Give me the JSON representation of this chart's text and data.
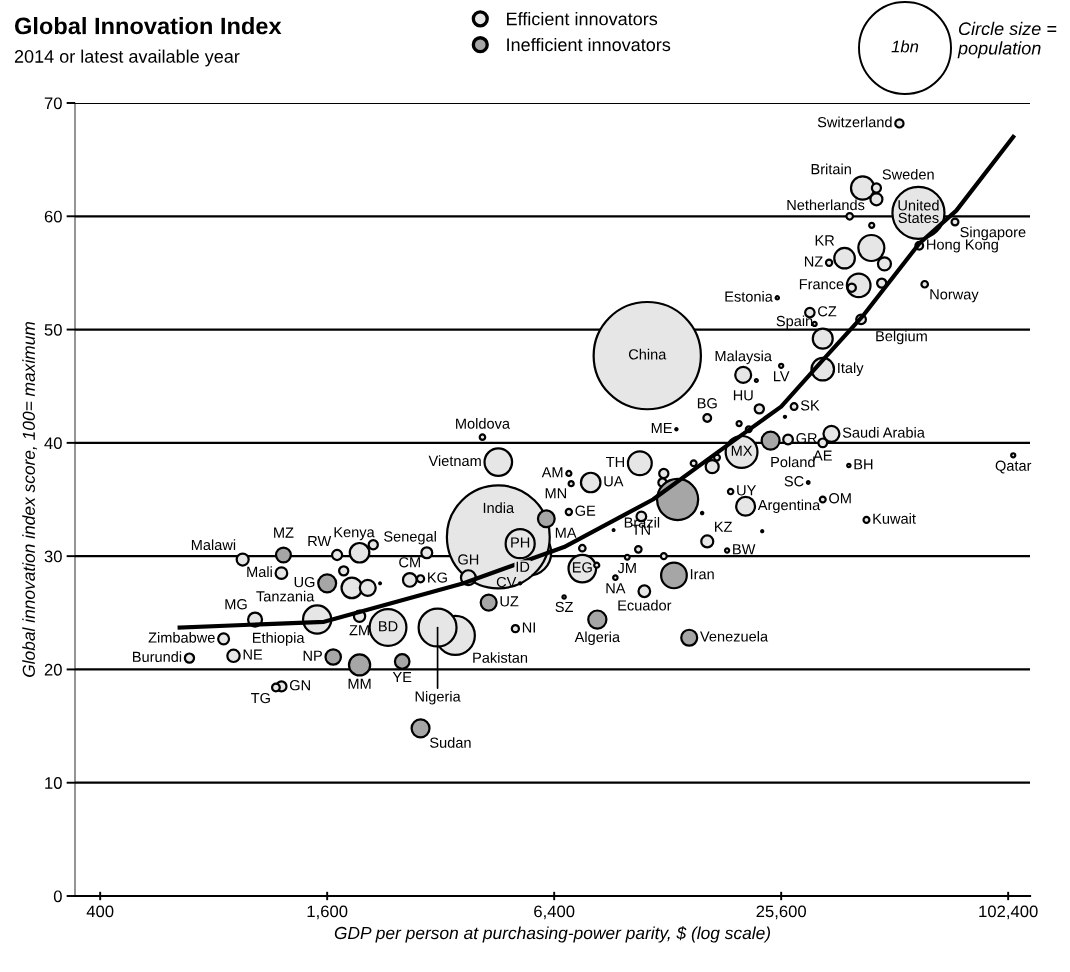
{
  "chart_data": {
    "type": "bubble",
    "title": "Global Innovation Index",
    "subtitle": "2014 or latest available year",
    "xlabel": "GDP per person at purchasing-power parity, $ (log scale)",
    "ylabel": "Global innovation index score, 100= maximum",
    "log": "x",
    "grid": "y",
    "legend": "top",
    "marker": "circle",
    "xlim": [
      343,
      117000
    ],
    "ylim": [
      0,
      70
    ],
    "xticks": [
      400,
      {
        "value": 1600,
        "label": "1,600"
      },
      {
        "value": 6400,
        "label": "6,400"
      },
      {
        "value": 25600,
        "label": "25,600"
      },
      {
        "value": 102400,
        "label": "102,400"
      }
    ],
    "yticks": [
      0,
      10,
      20,
      30,
      40,
      50,
      60,
      70
    ],
    "size_legend": [
      {
        "value": 1,
        "label": "1bn"
      }
    ],
    "series": [
      {
        "name": "Efficient innovators",
        "color": "#e6e6e6",
        "x": [
          52700,
          42100,
          45800,
          45800,
          59200,
          74000,
          59500,
          37700,
          34300,
          41100,
          61500,
          25000,
          30500,
          41700,
          33000,
          33000,
          11300,
          20300,
          25600,
          22400,
          27700,
          13500,
          16300,
          20100,
          26700,
          34800,
          33000,
          38700,
          105600,
          30200,
          33000,
          43100,
          18800,
          20600,
          16300,
          18400,
          10800,
          10900,
          8000,
          7000,
          7100,
          7000,
          5460,
          7600,
          10000,
          9300,
          11100,
          6800,
          4550,
          4130,
          4550,
          5200,
          3790,
          5200,
          5050,
          3500,
          3140,
          2320,
          1950,
          1505,
          1860,
          1210,
          955,
          1700,
          1950,
          2940,
          2650,
          2830,
          1030,
          850,
          690,
          903,
          1210,
          1170,
          38900,
          44500,
          44400,
          48100,
          39400,
          47300,
          31400,
          22000,
          26200,
          19800,
          21000,
          15000,
          17300,
          16800,
          12500,
          12400,
          7600,
          8300,
          10700,
          12500,
          1770,
          2120,
          2050,
          2210,
          15800,
          22800,
          9200
        ],
        "values": [
          68.2,
          62.5,
          62.5,
          61.5,
          60.3,
          59.5,
          57.4,
          56.3,
          55.9,
          53.9,
          54.0,
          52.8,
          51.5,
          50.9,
          49.2,
          46.5,
          47.7,
          46.0,
          46.8,
          43.0,
          43.2,
          41.2,
          42.2,
          39.2,
          40.3,
          40.8,
          40.0,
          38.0,
          38.9,
          36.5,
          35.0,
          33.2,
          35.7,
          34.4,
          31.3,
          30.5,
          38.2,
          33.5,
          36.5,
          37.3,
          36.4,
          33.9,
          30.3,
          28.9,
          29.9,
          28.1,
          26.9,
          26.4,
          31.7,
          40.5,
          38.3,
          31.1,
          28.1,
          27.6,
          23.6,
          23.0,
          23.7,
          23.7,
          24.7,
          24.4,
          27.2,
          28.5,
          29.7,
          30.1,
          30.3,
          30.3,
          27.9,
          28.0,
          24.4,
          22.7,
          21.0,
          21.2,
          18.5,
          18.4,
          60.0,
          59.2,
          57.2,
          55.8,
          53.7,
          54.1,
          50.5,
          45.5,
          42.3,
          41.7,
          41.2,
          38.2,
          38.7,
          37.9,
          37.3,
          36.5,
          30.7,
          29.2,
          30.6,
          30.0,
          28.7,
          31.0,
          27.2,
          27.6,
          33.8,
          32.2,
          32.3
        ],
        "sizes": [
          0.008,
          0.064,
          0.0097,
          0.017,
          0.32,
          0.0055,
          0.007,
          0.05,
          0.0045,
          0.066,
          0.005,
          0.0013,
          0.0105,
          0.011,
          0.047,
          0.06,
          1.36,
          0.03,
          0.002,
          0.01,
          0.0054,
          0.0006,
          0.007,
          0.12,
          0.011,
          0.03,
          0.009,
          0.0013,
          0.002,
          0.0008,
          0.004,
          0.004,
          0.0034,
          0.042,
          0.017,
          0.002,
          0.067,
          0.011,
          0.045,
          0.003,
          0.003,
          0.0045,
          0.25,
          0.09,
          0.0027,
          0.0023,
          0.016,
          0.0013,
          1.25,
          0.0035,
          0.09,
          0.1,
          0.026,
          0.0005,
          0.006,
          0.18,
          0.17,
          0.16,
          0.015,
          0.094,
          0.05,
          0.016,
          0.017,
          0.012,
          0.045,
          0.014,
          0.022,
          0.006,
          0.023,
          0.014,
          0.01,
          0.018,
          0.012,
          0.007,
          0.005,
          0.003,
          0.08,
          0.02,
          0.008,
          0.01,
          0.002,
          0.001,
          0.0005,
          0.003,
          0.004,
          0.004,
          0.004,
          0.02,
          0.01,
          0.008,
          0.005,
          0.003,
          0.005,
          0.004,
          0.01,
          0.01,
          0.03,
          0.0004,
          0.0006,
          0.0005,
          0.0004
        ]
      },
      {
        "name": "Inefficient innovators",
        "color": "#a6a6a6",
        "x": [
          24000,
          13600,
          13300,
          8330,
          14600,
          6100,
          4290,
          1600,
          1225,
          1660,
          1950,
          2530,
          2830
        ],
        "values": [
          40.2,
          35.0,
          28.3,
          24.4,
          22.8,
          33.3,
          25.9,
          27.6,
          30.1,
          21.1,
          20.4,
          20.7,
          14.8
        ],
        "sizes": [
          0.038,
          0.2,
          0.078,
          0.039,
          0.03,
          0.033,
          0.03,
          0.038,
          0.026,
          0.028,
          0.053,
          0.025,
          0.038
        ]
      },
      {
        "type": "line",
        "color": "#000000",
        "marker": "none",
        "x": [
          650,
          1570,
          3680,
          6800,
          11700,
          18100,
          25600,
          33000,
          42400,
          59500,
          74600,
          105600
        ],
        "values": [
          23.7,
          24.2,
          27.6,
          30.8,
          35.0,
          39.6,
          43.2,
          47.3,
          51.3,
          57.6,
          60.5,
          67.0
        ]
      }
    ],
    "annotations": [
      {
        "text": "Switzerland",
        "x": 52700,
        "y": 68.2
      },
      {
        "text": "Britain",
        "x": 42100,
        "y": 62.5
      },
      {
        "text": "Sweden",
        "x": 45800,
        "y": 62.5
      },
      {
        "text": "Netherlands",
        "x": 45800,
        "y": 61.5
      },
      {
        "text": "United\nStates",
        "x": 59200,
        "y": 60.3
      },
      {
        "text": "Singapore",
        "x": 74000,
        "y": 59.5
      },
      {
        "text": "Hong Kong",
        "x": 59500,
        "y": 57.4
      },
      {
        "text": "KR",
        "x": 37700,
        "y": 56.3
      },
      {
        "text": "NZ",
        "x": 34300,
        "y": 55.9
      },
      {
        "text": "France",
        "x": 41100,
        "y": 53.9
      },
      {
        "text": "Norway",
        "x": 61500,
        "y": 54.0
      },
      {
        "text": "Estonia",
        "x": 25000,
        "y": 52.8
      },
      {
        "text": "CZ",
        "x": 30500,
        "y": 51.5
      },
      {
        "text": "Belgium",
        "x": 41700,
        "y": 50.9
      },
      {
        "text": "Spain",
        "x": 33000,
        "y": 49.2
      },
      {
        "text": "Italy",
        "x": 33000,
        "y": 46.5
      },
      {
        "text": "China",
        "x": 11300,
        "y": 47.7
      },
      {
        "text": "Malaysia",
        "x": 20300,
        "y": 46.0
      },
      {
        "text": "LV",
        "x": 25600,
        "y": 46.8
      },
      {
        "text": "HU",
        "x": 22400,
        "y": 43.0
      },
      {
        "text": "SK",
        "x": 27700,
        "y": 43.2
      },
      {
        "text": "ME",
        "x": 13500,
        "y": 41.2
      },
      {
        "text": "BG",
        "x": 16300,
        "y": 42.2
      },
      {
        "text": "MX",
        "x": 20100,
        "y": 39.2
      },
      {
        "text": "GR",
        "x": 26700,
        "y": 40.3
      },
      {
        "text": "Saudi Arabia",
        "x": 34800,
        "y": 40.8
      },
      {
        "text": "AE",
        "x": 33000,
        "y": 40.0
      },
      {
        "text": "BH",
        "x": 38700,
        "y": 38.0
      },
      {
        "text": "Qatar",
        "x": 105600,
        "y": 38.9
      },
      {
        "text": "SC",
        "x": 30200,
        "y": 36.5
      },
      {
        "text": "OM",
        "x": 33000,
        "y": 35.0
      },
      {
        "text": "Kuwait",
        "x": 43100,
        "y": 33.2
      },
      {
        "text": "UY",
        "x": 18800,
        "y": 35.7
      },
      {
        "text": "Argentina",
        "x": 20600,
        "y": 34.4
      },
      {
        "text": "KZ",
        "x": 16300,
        "y": 31.3
      },
      {
        "text": "BW",
        "x": 18400,
        "y": 30.5
      },
      {
        "text": "TH",
        "x": 10800,
        "y": 38.2
      },
      {
        "text": "TN",
        "x": 10900,
        "y": 33.5
      },
      {
        "text": "UA",
        "x": 8000,
        "y": 36.5
      },
      {
        "text": "AM",
        "x": 7000,
        "y": 37.3
      },
      {
        "text": "MN",
        "x": 7100,
        "y": 36.4
      },
      {
        "text": "GE",
        "x": 7000,
        "y": 33.9
      },
      {
        "text": "ID",
        "x": 5460,
        "y": 30.3
      },
      {
        "text": "EG",
        "x": 7600,
        "y": 28.9
      },
      {
        "text": "JM",
        "x": 10000,
        "y": 29.9
      },
      {
        "text": "NA",
        "x": 9300,
        "y": 28.1
      },
      {
        "text": "Ecuador",
        "x": 11100,
        "y": 26.9
      },
      {
        "text": "SZ",
        "x": 6800,
        "y": 26.4
      },
      {
        "text": "India",
        "x": 4550,
        "y": 31.7
      },
      {
        "text": "Moldova",
        "x": 4130,
        "y": 40.5
      },
      {
        "text": "Vietnam",
        "x": 4550,
        "y": 38.3
      },
      {
        "text": "PH",
        "x": 5200,
        "y": 31.1
      },
      {
        "text": "GH",
        "x": 3790,
        "y": 28.1
      },
      {
        "text": "CV",
        "x": 5200,
        "y": 27.6
      },
      {
        "text": "NI",
        "x": 5050,
        "y": 23.6
      },
      {
        "text": "Pakistan",
        "x": 3500,
        "y": 23.0
      },
      {
        "text": "Nigeria",
        "x": 3140,
        "y": 23.7
      },
      {
        "text": "BD",
        "x": 2320,
        "y": 23.7
      },
      {
        "text": "ZM",
        "x": 1950,
        "y": 24.7
      },
      {
        "text": "Ethiopia",
        "x": 1505,
        "y": 24.4
      },
      {
        "text": "Tanzania",
        "x": 1860,
        "y": 27.2
      },
      {
        "text": "Mali",
        "x": 1210,
        "y": 28.5
      },
      {
        "text": "Malawi",
        "x": 955,
        "y": 29.7
      },
      {
        "text": "RW",
        "x": 1700,
        "y": 30.1
      },
      {
        "text": "Kenya",
        "x": 1950,
        "y": 30.3
      },
      {
        "text": "Senegal",
        "x": 2940,
        "y": 30.3
      },
      {
        "text": "CM",
        "x": 2650,
        "y": 27.9
      },
      {
        "text": "KG",
        "x": 2830,
        "y": 28.0
      },
      {
        "text": "MG",
        "x": 1030,
        "y": 24.4
      },
      {
        "text": "Zimbabwe",
        "x": 850,
        "y": 22.7
      },
      {
        "text": "Burundi",
        "x": 690,
        "y": 21.0
      },
      {
        "text": "NE",
        "x": 903,
        "y": 21.2
      },
      {
        "text": "GN",
        "x": 1210,
        "y": 18.5
      },
      {
        "text": "TG",
        "x": 1170,
        "y": 18.4
      },
      {
        "text": "Poland",
        "x": 24000,
        "y": 40.2
      },
      {
        "text": "Brazil",
        "x": 13600,
        "y": 35.0
      },
      {
        "text": "Iran",
        "x": 13300,
        "y": 28.3
      },
      {
        "text": "Algeria",
        "x": 8330,
        "y": 24.4
      },
      {
        "text": "Venezuela",
        "x": 14600,
        "y": 22.8
      },
      {
        "text": "MA",
        "x": 6100,
        "y": 33.3
      },
      {
        "text": "UZ",
        "x": 4290,
        "y": 25.9
      },
      {
        "text": "UG",
        "x": 1600,
        "y": 27.6
      },
      {
        "text": "MZ",
        "x": 1225,
        "y": 30.1
      },
      {
        "text": "NP",
        "x": 1660,
        "y": 21.1
      },
      {
        "text": "MM",
        "x": 1950,
        "y": 20.4
      },
      {
        "text": "YE",
        "x": 2530,
        "y": 20.7
      },
      {
        "text": "Sudan",
        "x": 2830,
        "y": 14.8
      },
      "Circle size = population"
    ]
  }
}
